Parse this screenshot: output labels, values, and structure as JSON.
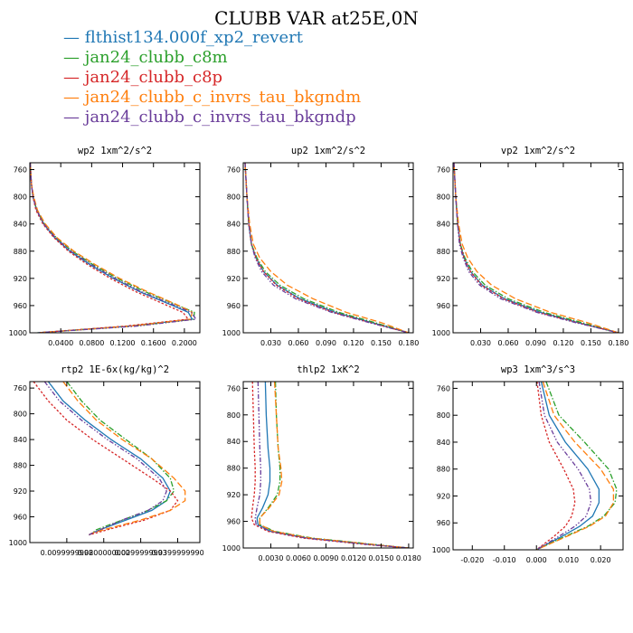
{
  "figure": {
    "title": "CLUBB VAR at25E,0N"
  },
  "legend": {
    "items": [
      {
        "label": "flthist134.000f_xp2_revert",
        "color": "#1f77b4"
      },
      {
        "label": "jan24_clubb_c8m",
        "color": "#2ca02c"
      },
      {
        "label": "jan24_clubb_c8p",
        "color": "#d62728"
      },
      {
        "label": "jan24_clubb_c_invrs_tau_bkgndm",
        "color": "#ff7f0e"
      },
      {
        "label": "jan24_clubb_c_invrs_tau_bkgndp",
        "color": "#6a3d9a"
      }
    ]
  },
  "chart_data": [
    {
      "type": "line",
      "title": "wp2  1xm^2/s^2",
      "xlim": [
        0.0,
        0.22
      ],
      "ylim": [
        1000,
        750
      ],
      "x_ticks": [
        0.04,
        0.08,
        0.12,
        0.16,
        0.2
      ],
      "x_tick_labels": [
        "0.0400",
        "0.0800",
        "0.1200",
        "0.1600",
        "0.2000"
      ],
      "y_ticks": [
        760,
        800,
        840,
        880,
        920,
        960,
        1000
      ],
      "y_tick_labels": [
        "760",
        "800",
        "840",
        "880",
        "920",
        "960",
        "1000"
      ],
      "y": [
        750,
        780,
        800,
        820,
        840,
        860,
        880,
        900,
        920,
        940,
        960,
        970,
        980,
        990,
        1000
      ],
      "series": [
        {
          "values": [
            0.0005,
            0.002,
            0.004,
            0.009,
            0.018,
            0.032,
            0.052,
            0.078,
            0.108,
            0.143,
            0.185,
            0.205,
            0.21,
            0.13,
            0.01
          ]
        },
        {
          "values": [
            0.0005,
            0.002,
            0.004,
            0.009,
            0.019,
            0.034,
            0.055,
            0.082,
            0.113,
            0.15,
            0.192,
            0.213,
            0.212,
            0.135,
            0.01
          ]
        },
        {
          "values": [
            0.0005,
            0.002,
            0.004,
            0.008,
            0.017,
            0.031,
            0.05,
            0.075,
            0.104,
            0.138,
            0.178,
            0.198,
            0.205,
            0.125,
            0.01
          ]
        },
        {
          "values": [
            0.0005,
            0.002,
            0.005,
            0.01,
            0.02,
            0.035,
            0.057,
            0.085,
            0.116,
            0.153,
            0.193,
            0.21,
            0.208,
            0.132,
            0.01
          ]
        },
        {
          "values": [
            0.0005,
            0.002,
            0.004,
            0.009,
            0.018,
            0.033,
            0.053,
            0.08,
            0.11,
            0.145,
            0.188,
            0.209,
            0.215,
            0.14,
            0.01
          ]
        }
      ]
    },
    {
      "type": "line",
      "title": "up2  1xm^2/s^2",
      "xlim": [
        0.0,
        0.185
      ],
      "ylim": [
        1000,
        750
      ],
      "x_ticks": [
        0.03,
        0.06,
        0.09,
        0.12,
        0.15,
        0.18
      ],
      "x_tick_labels": [
        "0.030",
        "0.060",
        "0.090",
        "0.120",
        "0.150",
        "0.180"
      ],
      "y_ticks": [
        760,
        800,
        840,
        880,
        920,
        960,
        1000
      ],
      "y_tick_labels": [
        "760",
        "800",
        "840",
        "880",
        "920",
        "960",
        "1000"
      ],
      "y": [
        750,
        800,
        840,
        870,
        890,
        910,
        930,
        950,
        970,
        985,
        1000
      ],
      "series": [
        {
          "values": [
            0.002,
            0.004,
            0.006,
            0.009,
            0.014,
            0.022,
            0.037,
            0.062,
            0.1,
            0.14,
            0.18
          ]
        },
        {
          "values": [
            0.002,
            0.004,
            0.006,
            0.009,
            0.015,
            0.024,
            0.04,
            0.066,
            0.104,
            0.143,
            0.18
          ]
        },
        {
          "values": [
            0.002,
            0.004,
            0.006,
            0.009,
            0.014,
            0.022,
            0.036,
            0.06,
            0.098,
            0.138,
            0.18
          ]
        },
        {
          "values": [
            0.002,
            0.004,
            0.007,
            0.011,
            0.018,
            0.03,
            0.048,
            0.076,
            0.112,
            0.15,
            0.18
          ]
        },
        {
          "values": [
            0.002,
            0.004,
            0.006,
            0.009,
            0.013,
            0.02,
            0.033,
            0.057,
            0.096,
            0.137,
            0.18
          ]
        }
      ]
    },
    {
      "type": "line",
      "title": "vp2  1xm^2/s^2",
      "xlim": [
        0.0,
        0.185
      ],
      "ylim": [
        1000,
        750
      ],
      "x_ticks": [
        0.03,
        0.06,
        0.09,
        0.12,
        0.15,
        0.18
      ],
      "x_tick_labels": [
        "0.030",
        "0.060",
        "0.090",
        "0.120",
        "0.150",
        "0.180"
      ],
      "y_ticks": [
        760,
        800,
        840,
        880,
        920,
        960,
        1000
      ],
      "y_tick_labels": [
        "760",
        "800",
        "840",
        "880",
        "920",
        "960",
        "1000"
      ],
      "y": [
        750,
        800,
        840,
        870,
        890,
        910,
        930,
        950,
        970,
        985,
        1000
      ],
      "series": [
        {
          "values": [
            0.001,
            0.003,
            0.005,
            0.008,
            0.012,
            0.019,
            0.032,
            0.056,
            0.095,
            0.136,
            0.18
          ]
        },
        {
          "values": [
            0.001,
            0.003,
            0.005,
            0.008,
            0.013,
            0.021,
            0.035,
            0.06,
            0.099,
            0.14,
            0.18
          ]
        },
        {
          "values": [
            0.001,
            0.003,
            0.005,
            0.008,
            0.012,
            0.019,
            0.031,
            0.055,
            0.093,
            0.135,
            0.18
          ]
        },
        {
          "values": [
            0.001,
            0.003,
            0.006,
            0.01,
            0.016,
            0.026,
            0.042,
            0.068,
            0.106,
            0.146,
            0.18
          ]
        },
        {
          "values": [
            0.001,
            0.003,
            0.005,
            0.007,
            0.011,
            0.017,
            0.029,
            0.052,
            0.091,
            0.133,
            0.18
          ]
        }
      ]
    },
    {
      "type": "line",
      "title": "rtp2  1E-6x(kg/kg)^2",
      "xlim": [
        0.0,
        0.046
      ],
      "ylim": [
        1000,
        750
      ],
      "x_ticks": [
        0.01,
        0.02,
        0.03,
        0.04
      ],
      "x_tick_labels": [
        "0.0099999998",
        "0.0200000000",
        "0.0299999993",
        "0.0399999990"
      ],
      "y_ticks": [
        760,
        800,
        840,
        880,
        920,
        960,
        1000
      ],
      "y_tick_labels": [
        "760",
        "800",
        "840",
        "880",
        "920",
        "960",
        "1000"
      ],
      "y": [
        750,
        780,
        810,
        840,
        870,
        900,
        920,
        935,
        950,
        965,
        980,
        985,
        988
      ],
      "series": [
        {
          "values": [
            0.005,
            0.009,
            0.015,
            0.022,
            0.03,
            0.036,
            0.038,
            0.037,
            0.033,
            0.026,
            0.019,
            0.017,
            0.016
          ]
        },
        {
          "values": [
            0.01,
            0.014,
            0.019,
            0.026,
            0.033,
            0.038,
            0.039,
            0.037,
            0.032,
            0.025,
            0.018,
            0.017,
            0.016
          ]
        },
        {
          "values": [
            0.001,
            0.005,
            0.01,
            0.017,
            0.025,
            0.033,
            0.038,
            0.04,
            0.038,
            0.031,
            0.021,
            0.018,
            0.016
          ]
        },
        {
          "values": [
            0.009,
            0.013,
            0.018,
            0.025,
            0.033,
            0.039,
            0.042,
            0.042,
            0.038,
            0.03,
            0.02,
            0.017,
            0.016
          ]
        },
        {
          "values": [
            0.004,
            0.008,
            0.014,
            0.021,
            0.029,
            0.035,
            0.037,
            0.036,
            0.032,
            0.025,
            0.019,
            0.017,
            0.016
          ]
        }
      ]
    },
    {
      "type": "line",
      "title": "thlp2  1xK^2",
      "xlim": [
        0.0,
        0.0185
      ],
      "ylim": [
        1000,
        750
      ],
      "x_ticks": [
        0.003,
        0.006,
        0.009,
        0.012,
        0.015,
        0.018
      ],
      "x_tick_labels": [
        "0.0030",
        "0.0060",
        "0.0090",
        "0.0120",
        "0.0150",
        "0.0180"
      ],
      "y_ticks": [
        760,
        800,
        840,
        880,
        920,
        960,
        1000
      ],
      "y_tick_labels": [
        "760",
        "800",
        "840",
        "880",
        "920",
        "960",
        "1000"
      ],
      "y": [
        750,
        800,
        850,
        880,
        900,
        920,
        940,
        955,
        965,
        975,
        985,
        995,
        1000
      ],
      "series": [
        {
          "values": [
            0.0024,
            0.0025,
            0.0027,
            0.0029,
            0.0029,
            0.0027,
            0.0021,
            0.0015,
            0.0016,
            0.003,
            0.007,
            0.014,
            0.018
          ]
        },
        {
          "values": [
            0.0035,
            0.0036,
            0.0038,
            0.004,
            0.004,
            0.0037,
            0.0027,
            0.0018,
            0.0018,
            0.0034,
            0.0075,
            0.0145,
            0.018
          ]
        },
        {
          "values": [
            0.001,
            0.0011,
            0.0012,
            0.0013,
            0.0013,
            0.0012,
            0.001,
            0.0009,
            0.0012,
            0.0027,
            0.0065,
            0.0135,
            0.018
          ]
        },
        {
          "values": [
            0.0034,
            0.0036,
            0.0038,
            0.0041,
            0.0042,
            0.0039,
            0.0028,
            0.0018,
            0.0018,
            0.0033,
            0.0073,
            0.0143,
            0.018
          ]
        },
        {
          "values": [
            0.0016,
            0.0017,
            0.0018,
            0.0019,
            0.0019,
            0.0018,
            0.0015,
            0.0013,
            0.0014,
            0.0029,
            0.0068,
            0.0138,
            0.018
          ]
        }
      ]
    },
    {
      "type": "line",
      "title": "wp3  1xm^3/s^3",
      "xlim": [
        -0.026,
        0.027
      ],
      "ylim": [
        1000,
        750
      ],
      "x_ticks": [
        -0.02,
        -0.01,
        0.0,
        0.01,
        0.02
      ],
      "x_tick_labels": [
        "-0.020",
        "-0.010",
        "0.000",
        "0.010",
        "0.020"
      ],
      "y_ticks": [
        760,
        800,
        840,
        880,
        920,
        960,
        1000
      ],
      "y_tick_labels": [
        "760",
        "800",
        "840",
        "880",
        "920",
        "960",
        "1000"
      ],
      "y": [
        750,
        800,
        840,
        880,
        910,
        930,
        950,
        965,
        980,
        1000
      ],
      "series": [
        {
          "values": [
            0.0015,
            0.004,
            0.009,
            0.016,
            0.0195,
            0.0195,
            0.0175,
            0.0135,
            0.008,
            0.0
          ]
        },
        {
          "values": [
            0.003,
            0.007,
            0.015,
            0.0225,
            0.025,
            0.0245,
            0.021,
            0.016,
            0.009,
            0.0
          ]
        },
        {
          "values": [
            0.0002,
            0.0015,
            0.004,
            0.0085,
            0.0115,
            0.012,
            0.011,
            0.009,
            0.0055,
            0.0
          ]
        },
        {
          "values": [
            0.002,
            0.0055,
            0.012,
            0.02,
            0.024,
            0.024,
            0.0215,
            0.0165,
            0.0095,
            0.0
          ]
        },
        {
          "values": [
            0.0008,
            0.0025,
            0.0065,
            0.013,
            0.0165,
            0.017,
            0.0155,
            0.012,
            0.007,
            0.0
          ]
        }
      ]
    }
  ]
}
